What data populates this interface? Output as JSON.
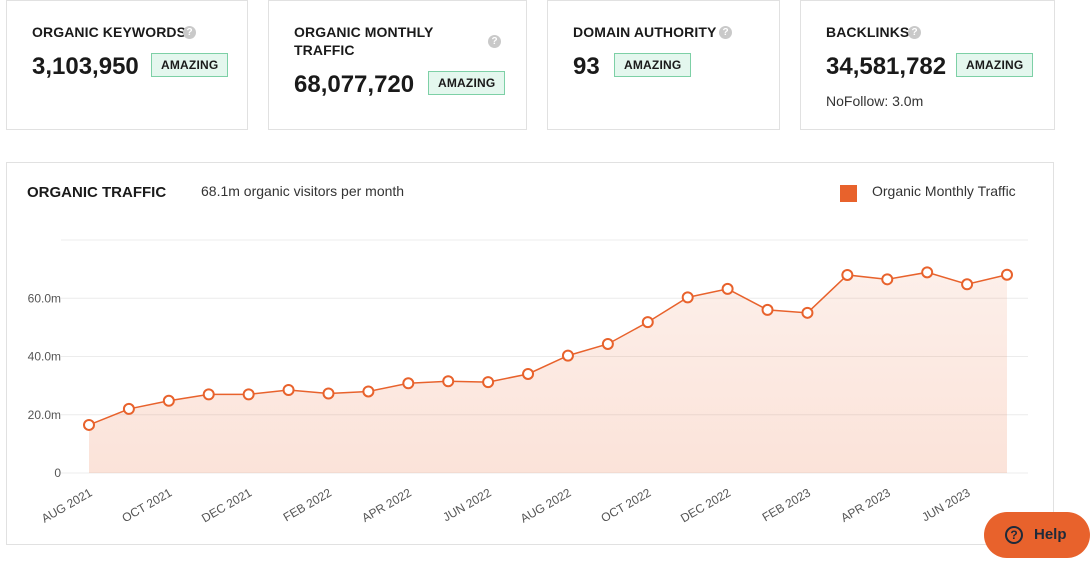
{
  "cards": [
    {
      "title_line1": "ORGANIC KEYWORDS",
      "title_line2": "",
      "value": "3,103,950",
      "badge": "AMAZING",
      "note": ""
    },
    {
      "title_line1": "ORGANIC MONTHLY",
      "title_line2": "TRAFFIC",
      "value": "68,077,720",
      "badge": "AMAZING",
      "note": ""
    },
    {
      "title_line1": "DOMAIN AUTHORITY",
      "title_line2": "",
      "value": "93",
      "badge": "AMAZING",
      "note": ""
    },
    {
      "title_line1": "BACKLINKS",
      "title_line2": "",
      "value": "34,581,782",
      "badge": "AMAZING",
      "note": "NoFollow: 3.0m"
    }
  ],
  "help_glyph": "?",
  "help_button": {
    "label": "Help",
    "icon": "question-icon"
  },
  "colors": {
    "accent": "#e8622c",
    "badge_bg": "#e4f7ee",
    "badge_border": "#7dd0a6"
  },
  "chart_data": {
    "type": "area",
    "title": "ORGANIC TRAFFIC",
    "subtitle": "68.1m organic visitors per month",
    "legend": [
      "Organic Monthly Traffic"
    ],
    "legend_position": "top-right",
    "grid": true,
    "ylim": [
      0,
      80000000
    ],
    "y_ticks": [
      0,
      20000000,
      40000000,
      60000000
    ],
    "y_tick_labels": [
      "0",
      "20.0m",
      "40.0m",
      "60.0m"
    ],
    "x": [
      "2021-08",
      "2021-09",
      "2021-10",
      "2021-11",
      "2021-12",
      "2022-01",
      "2022-02",
      "2022-03",
      "2022-04",
      "2022-05",
      "2022-06",
      "2022-07",
      "2022-08",
      "2022-09",
      "2022-10",
      "2022-11",
      "2022-12",
      "2023-01",
      "2023-02",
      "2023-03",
      "2023-04",
      "2023-05",
      "2023-06",
      "2023-07"
    ],
    "x_tick_labels": [
      "AUG 2021",
      "OCT 2021",
      "DEC 2021",
      "FEB 2022",
      "APR 2022",
      "JUN 2022",
      "AUG 2022",
      "OCT 2022",
      "DEC 2022",
      "FEB 2023",
      "APR 2023",
      "JUN 2023"
    ],
    "series": [
      {
        "name": "Organic Monthly Traffic",
        "color": "#e8622c",
        "values": [
          16500000,
          22000000,
          24800000,
          27000000,
          27000000,
          28500000,
          27300000,
          28000000,
          30800000,
          31500000,
          31200000,
          34000000,
          40300000,
          44300000,
          51800000,
          60300000,
          63200000,
          56000000,
          55000000,
          68000000,
          66500000,
          68900000,
          64800000,
          68077720
        ]
      }
    ]
  }
}
